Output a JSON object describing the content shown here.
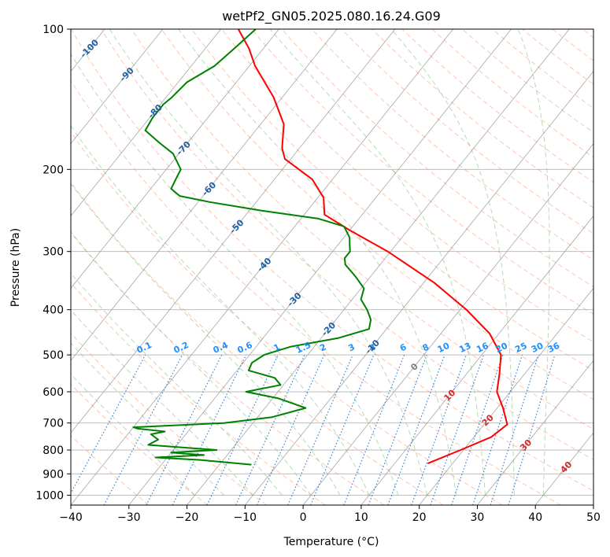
{
  "chart_data": {
    "type": "line",
    "title": "wetPf2_GN05.2025.080.16.24.G09",
    "xlabel": "Temperature (°C)",
    "ylabel": "Pressure (hPa)",
    "xlim": [
      -40,
      50
    ],
    "ylim": [
      1050,
      100
    ],
    "y_scale": "log",
    "skew_t": true,
    "grid": true,
    "x_ticks": [
      -40,
      -30,
      -20,
      -10,
      0,
      10,
      20,
      30,
      40,
      50
    ],
    "y_ticks": [
      100,
      200,
      300,
      400,
      500,
      600,
      700,
      800,
      900,
      1000
    ],
    "colors": {
      "temperature": "#ff0000",
      "dewpoint": "#008000",
      "dry_adiabat": "#ff7f50",
      "moist_adiabat": "#5fae5f",
      "mixing_ratio": "#1f77d4",
      "isotherm": "#808080",
      "isobar": "#a0a0a0",
      "temp_label": "#d62728",
      "mixing_label": "#1e90ff",
      "isotherm_label": "#1f5fa0"
    },
    "series": [
      {
        "key": "temperature",
        "p": [
          855,
          800,
          750,
          705,
          650,
          600,
          550,
          500,
          450,
          400,
          350,
          300,
          270,
          250,
          230,
          210,
          190,
          180,
          160,
          140,
          120,
          110,
          100
        ],
        "t": [
          15.7,
          19.5,
          23.0,
          24.0,
          21.0,
          17.7,
          15.7,
          13.3,
          8.4,
          1.1,
          -8.2,
          -20.5,
          -30.0,
          -36.5,
          -39.0,
          -43.5,
          -51.0,
          -53.0,
          -56.0,
          -61.5,
          -69.0,
          -72.5,
          -77.0
        ]
      },
      {
        "key": "dewpoint",
        "p": [
          860,
          840,
          830,
          820,
          810,
          800,
          780,
          760,
          740,
          730,
          720,
          715,
          700,
          680,
          650,
          620,
          600,
          580,
          560,
          540,
          520,
          500,
          480,
          460,
          440,
          420,
          400,
          380,
          360,
          340,
          320,
          310,
          300,
          290,
          280,
          265,
          255,
          245,
          235,
          228,
          220,
          210,
          200,
          185,
          175,
          165,
          155,
          145,
          140,
          130,
          120,
          110,
          100
        ],
        "t": [
          -14.5,
          -24.0,
          -32.0,
          -24.0,
          -30.0,
          -22.5,
          -35.0,
          -34.0,
          -36.0,
          -34.0,
          -39.0,
          -40.0,
          -25.0,
          -17.5,
          -13.0,
          -19.0,
          -25.5,
          -20.5,
          -22.5,
          -28.0,
          -28.5,
          -27.5,
          -24.0,
          -17.0,
          -13.0,
          -14.0,
          -16.0,
          -18.5,
          -19.5,
          -22.5,
          -26.0,
          -27.0,
          -27.0,
          -28.0,
          -29.0,
          -31.5,
          -37.0,
          -48.0,
          -58.0,
          -64.0,
          -66.5,
          -67.0,
          -67.5,
          -71.0,
          -75.0,
          -79.0,
          -79.5,
          -79.5,
          -79.0,
          -78.5,
          -76.0,
          -75.0,
          -74.0
        ]
      }
    ],
    "isotherm_labels": [
      "-100",
      "-90",
      "-80",
      "-70",
      "-60",
      "-50",
      "-40",
      "-30",
      "-20",
      "-10",
      "0"
    ],
    "isotherm_label_values": [
      -100,
      -90,
      -80,
      -70,
      -60,
      -50,
      -40,
      -30,
      -20,
      -10,
      0
    ],
    "mixing_ratio_labels": [
      "0.1",
      "0.2",
      "0.4",
      "0.6",
      "1",
      "1.5",
      "2",
      "3",
      "4",
      "6",
      "8",
      "10",
      "13",
      "16",
      "20",
      "25",
      "30",
      "36"
    ],
    "mixing_ratio_values": [
      0.1,
      0.2,
      0.4,
      0.6,
      1,
      1.5,
      2,
      3,
      4,
      6,
      8,
      10,
      13,
      16,
      20,
      25,
      30,
      36
    ],
    "temp_labels_right": [
      "10",
      "20",
      "30",
      "40"
    ],
    "temp_label_values": [
      10,
      20,
      30,
      40
    ]
  }
}
